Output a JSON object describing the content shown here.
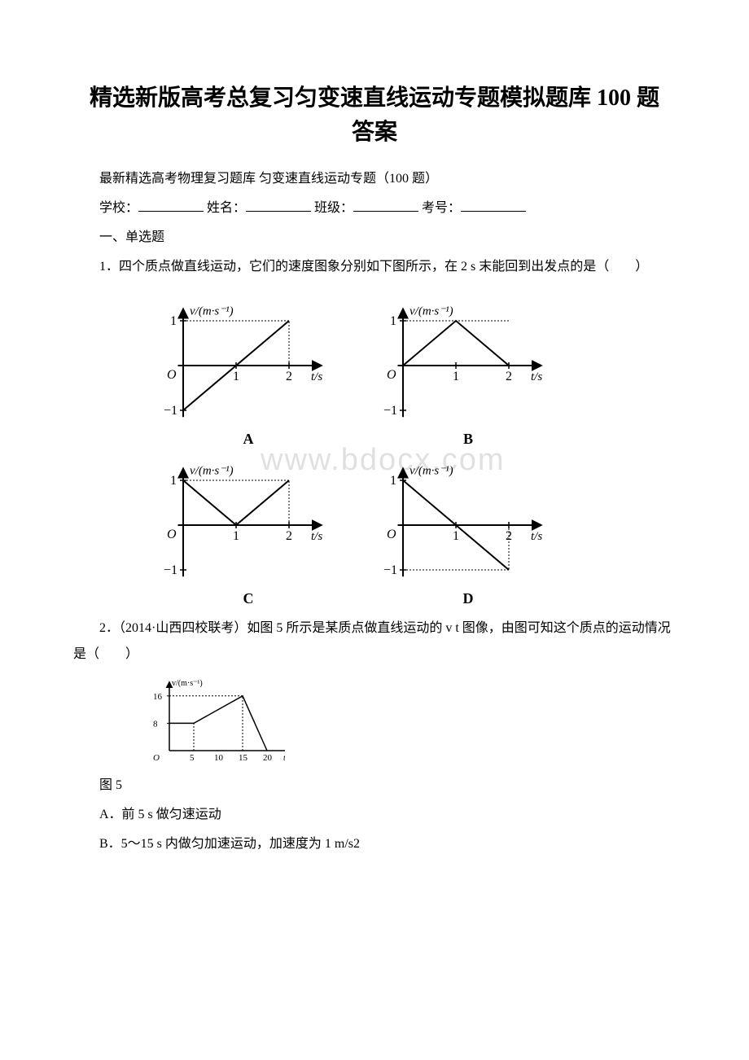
{
  "title_line1": "精选新版高考总复习匀变速直线运动专题模拟题库 100 题",
  "title_line2": "答案",
  "subtitle": "最新精选高考物理复习题库 匀变速直线运动专题（100 题）",
  "info_prefixes": {
    "school": "学校：",
    "name": " 姓名：",
    "class": " 班级：",
    "id": " 考号："
  },
  "section1": "一、单选题",
  "q1_text": "1．四个质点做直线运动，它们的速度图象分别如下图所示，在 2 s 末能回到出发点的是（　　）",
  "q2_text": "2．（2014·山西四校联考）如图 5 所示是某质点做直线运动的 v t 图像，由图可知这个质点的运动情况是（　　）",
  "fig5_label": "图 5",
  "optA": "A．前 5 s 做匀速运动",
  "optB": "B．5～15 s 内做匀加速运动，加速度为 1 m/s2",
  "watermark_text": "www.bdocx.com",
  "charts": {
    "axis_color": "#000000",
    "grid_dash": "2,2",
    "line_width": 2,
    "font_family": "serif",
    "axis_label_y": "v/(m·s⁻¹)",
    "axis_label_x": "t/s",
    "xlim": [
      0,
      2.4
    ],
    "ylim": [
      -1.2,
      1.2
    ],
    "xticks": [
      1,
      2
    ],
    "yticks_pos": [
      1
    ],
    "yticks_neg": [
      -1
    ],
    "panels": {
      "A": {
        "label": "A",
        "points": [
          [
            0,
            -1
          ],
          [
            2,
            1
          ]
        ],
        "aux_v": [
          2
        ],
        "aux_h": [
          1
        ]
      },
      "B": {
        "label": "B",
        "points": [
          [
            0,
            0
          ],
          [
            1,
            1
          ],
          [
            2,
            0
          ]
        ],
        "aux_h": [
          1
        ]
      },
      "C": {
        "label": "C",
        "points": [
          [
            0,
            1
          ],
          [
            1,
            0
          ],
          [
            2,
            1
          ]
        ],
        "aux_v": [
          2
        ],
        "aux_h": [
          1
        ]
      },
      "D": {
        "label": "D",
        "points": [
          [
            0,
            1
          ],
          [
            2,
            -1
          ]
        ],
        "aux_v": [
          2
        ],
        "aux_h": [
          -1
        ]
      }
    }
  },
  "q2_chart": {
    "axis_label_y": "v/(m·s⁻¹)",
    "axis_label_x": "t/s",
    "xticks": [
      5,
      10,
      15,
      20
    ],
    "yticks": [
      8,
      16
    ],
    "points": [
      [
        0,
        8
      ],
      [
        5,
        8
      ],
      [
        15,
        16
      ],
      [
        20,
        0
      ]
    ],
    "line_width": 1.5,
    "axis_color": "#000000"
  }
}
